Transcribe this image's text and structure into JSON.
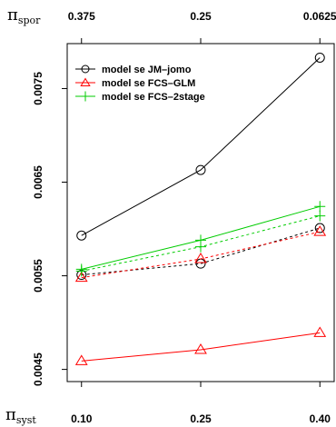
{
  "chart_data": {
    "type": "line",
    "x": [
      0.1,
      0.25,
      0.4
    ],
    "x_tick_labels": [
      "0.10",
      "0.25",
      "0.40"
    ],
    "top_tick_labels": [
      "0.375",
      "0.25",
      "0.0625"
    ],
    "y_ticks": [
      0.0045,
      0.0055,
      0.0065,
      0.0075
    ],
    "y_tick_labels": [
      "0.0045",
      "0.0055",
      "0.0065",
      "0.0075"
    ],
    "ylim": [
      0.00437,
      0.00798
    ],
    "xlabel": {
      "symbol": "π",
      "sub": "syst"
    },
    "top_label": {
      "symbol": "π",
      "sub": "spor"
    },
    "grid": false,
    "legend_position": "top-left",
    "series": [
      {
        "name": "model se JM–jomo",
        "color": "#000000",
        "marker": "circle",
        "linestyle": "solid",
        "values": [
          0.00593,
          0.00663,
          0.00783
        ]
      },
      {
        "name": "model se FCS–GLM",
        "color": "#ff0000",
        "marker": "triangle",
        "linestyle": "solid",
        "values": [
          0.00459,
          0.00471,
          0.00489
        ]
      },
      {
        "name": "model se FCS–2stage",
        "color": "#00cc00",
        "marker": "plus",
        "linestyle": "solid",
        "values": [
          0.00557,
          0.00588,
          0.00624
        ]
      },
      {
        "color": "#000000",
        "marker": "circle",
        "linestyle": "dashed",
        "values": [
          0.00551,
          0.00563,
          0.00601
        ]
      },
      {
        "color": "#ff0000",
        "marker": "triangle",
        "linestyle": "dashed",
        "values": [
          0.00548,
          0.00568,
          0.00597
        ]
      },
      {
        "color": "#00cc00",
        "marker": "plus",
        "linestyle": "dashed",
        "values": [
          0.00555,
          0.00581,
          0.00614
        ]
      }
    ]
  }
}
